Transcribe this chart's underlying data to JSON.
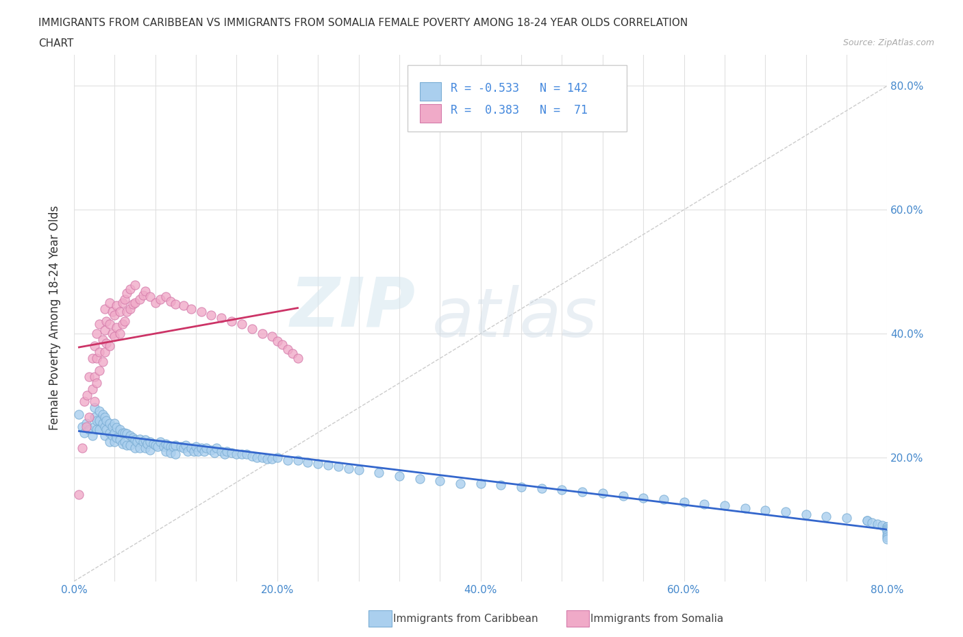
{
  "title_line1": "IMMIGRANTS FROM CARIBBEAN VS IMMIGRANTS FROM SOMALIA FEMALE POVERTY AMONG 18-24 YEAR OLDS CORRELATION",
  "title_line2": "CHART",
  "source_text": "Source: ZipAtlas.com",
  "ylabel": "Female Poverty Among 18-24 Year Olds",
  "xlim": [
    0.0,
    0.8
  ],
  "ylim": [
    0.0,
    0.85
  ],
  "xtick_labels": [
    "0.0%",
    "",
    "",
    "",
    "",
    "20.0%",
    "",
    "",
    "",
    "",
    "40.0%",
    "",
    "",
    "",
    "",
    "60.0%",
    "",
    "",
    "",
    "",
    "80.0%"
  ],
  "xtick_vals": [
    0.0,
    0.04,
    0.08,
    0.12,
    0.16,
    0.2,
    0.24,
    0.28,
    0.32,
    0.36,
    0.4,
    0.44,
    0.48,
    0.52,
    0.56,
    0.6,
    0.64,
    0.68,
    0.72,
    0.76,
    0.8
  ],
  "ytick_labels": [
    "20.0%",
    "40.0%",
    "60.0%",
    "80.0%"
  ],
  "ytick_vals": [
    0.2,
    0.4,
    0.6,
    0.8
  ],
  "grid_color": "#e0e0e0",
  "background_color": "#ffffff",
  "caribbean_color": "#aacfee",
  "caribbean_edge": "#7aadd4",
  "somalia_color": "#f0aac8",
  "somalia_edge": "#d47aaa",
  "caribbean_line_color": "#3366cc",
  "somalia_line_color": "#cc3366",
  "diagonal_line_color": "#cccccc",
  "R_caribbean": -0.533,
  "N_caribbean": 142,
  "R_somalia": 0.383,
  "N_somalia": 71,
  "legend_label_caribbean": "Immigrants from Caribbean",
  "legend_label_somalia": "Immigrants from Somalia",
  "watermark_zip": "ZIP",
  "watermark_atlas": "atlas",
  "caribbean_x": [
    0.005,
    0.008,
    0.01,
    0.012,
    0.015,
    0.018,
    0.02,
    0.02,
    0.02,
    0.022,
    0.022,
    0.025,
    0.025,
    0.025,
    0.028,
    0.028,
    0.03,
    0.03,
    0.03,
    0.032,
    0.032,
    0.035,
    0.035,
    0.035,
    0.038,
    0.038,
    0.04,
    0.04,
    0.04,
    0.042,
    0.042,
    0.045,
    0.045,
    0.048,
    0.048,
    0.05,
    0.05,
    0.052,
    0.052,
    0.055,
    0.055,
    0.058,
    0.06,
    0.06,
    0.062,
    0.065,
    0.065,
    0.068,
    0.07,
    0.07,
    0.072,
    0.075,
    0.075,
    0.078,
    0.08,
    0.082,
    0.085,
    0.088,
    0.09,
    0.09,
    0.092,
    0.095,
    0.095,
    0.098,
    0.1,
    0.1,
    0.105,
    0.108,
    0.11,
    0.112,
    0.115,
    0.118,
    0.12,
    0.122,
    0.125,
    0.128,
    0.13,
    0.135,
    0.138,
    0.14,
    0.145,
    0.148,
    0.15,
    0.155,
    0.16,
    0.165,
    0.17,
    0.175,
    0.18,
    0.185,
    0.19,
    0.195,
    0.2,
    0.21,
    0.22,
    0.23,
    0.24,
    0.25,
    0.26,
    0.27,
    0.28,
    0.3,
    0.32,
    0.34,
    0.36,
    0.38,
    0.4,
    0.42,
    0.44,
    0.46,
    0.48,
    0.5,
    0.52,
    0.54,
    0.56,
    0.58,
    0.6,
    0.62,
    0.64,
    0.66,
    0.68,
    0.7,
    0.72,
    0.74,
    0.76,
    0.78,
    0.78,
    0.785,
    0.79,
    0.795,
    0.8,
    0.8,
    0.8,
    0.8,
    0.8,
    0.8,
    0.8,
    0.8
  ],
  "caribbean_y": [
    0.27,
    0.25,
    0.24,
    0.255,
    0.245,
    0.235,
    0.28,
    0.265,
    0.25,
    0.26,
    0.245,
    0.275,
    0.26,
    0.245,
    0.27,
    0.255,
    0.265,
    0.25,
    0.235,
    0.26,
    0.245,
    0.255,
    0.24,
    0.225,
    0.25,
    0.235,
    0.255,
    0.24,
    0.225,
    0.248,
    0.232,
    0.245,
    0.228,
    0.24,
    0.222,
    0.24,
    0.225,
    0.238,
    0.22,
    0.235,
    0.22,
    0.232,
    0.228,
    0.215,
    0.225,
    0.23,
    0.215,
    0.225,
    0.228,
    0.215,
    0.222,
    0.225,
    0.212,
    0.222,
    0.22,
    0.218,
    0.225,
    0.218,
    0.222,
    0.21,
    0.22,
    0.218,
    0.208,
    0.218,
    0.22,
    0.205,
    0.218,
    0.215,
    0.22,
    0.21,
    0.215,
    0.21,
    0.218,
    0.21,
    0.215,
    0.21,
    0.215,
    0.212,
    0.208,
    0.215,
    0.21,
    0.205,
    0.21,
    0.208,
    0.205,
    0.205,
    0.205,
    0.202,
    0.2,
    0.2,
    0.198,
    0.198,
    0.2,
    0.195,
    0.195,
    0.192,
    0.19,
    0.188,
    0.185,
    0.182,
    0.18,
    0.175,
    0.17,
    0.165,
    0.162,
    0.158,
    0.158,
    0.155,
    0.152,
    0.15,
    0.148,
    0.145,
    0.142,
    0.138,
    0.135,
    0.132,
    0.128,
    0.125,
    0.122,
    0.118,
    0.115,
    0.112,
    0.108,
    0.105,
    0.102,
    0.098,
    0.098,
    0.095,
    0.092,
    0.09,
    0.088,
    0.088,
    0.085,
    0.082,
    0.08,
    0.075,
    0.072,
    0.068
  ],
  "somalia_x": [
    0.005,
    0.008,
    0.01,
    0.012,
    0.013,
    0.015,
    0.015,
    0.018,
    0.018,
    0.02,
    0.02,
    0.02,
    0.022,
    0.022,
    0.022,
    0.025,
    0.025,
    0.025,
    0.028,
    0.028,
    0.03,
    0.03,
    0.03,
    0.032,
    0.032,
    0.035,
    0.035,
    0.035,
    0.038,
    0.038,
    0.04,
    0.04,
    0.042,
    0.042,
    0.045,
    0.045,
    0.048,
    0.048,
    0.05,
    0.05,
    0.052,
    0.052,
    0.055,
    0.055,
    0.058,
    0.06,
    0.06,
    0.065,
    0.068,
    0.07,
    0.075,
    0.08,
    0.085,
    0.09,
    0.095,
    0.1,
    0.108,
    0.115,
    0.125,
    0.135,
    0.145,
    0.155,
    0.165,
    0.175,
    0.185,
    0.195,
    0.2,
    0.205,
    0.21,
    0.215,
    0.22
  ],
  "somalia_y": [
    0.14,
    0.215,
    0.29,
    0.25,
    0.3,
    0.33,
    0.265,
    0.31,
    0.36,
    0.29,
    0.33,
    0.38,
    0.32,
    0.36,
    0.4,
    0.34,
    0.37,
    0.415,
    0.355,
    0.39,
    0.37,
    0.405,
    0.44,
    0.385,
    0.42,
    0.38,
    0.415,
    0.45,
    0.4,
    0.435,
    0.395,
    0.43,
    0.41,
    0.445,
    0.4,
    0.435,
    0.415,
    0.45,
    0.42,
    0.455,
    0.435,
    0.465,
    0.44,
    0.472,
    0.448,
    0.45,
    0.478,
    0.455,
    0.462,
    0.468,
    0.46,
    0.45,
    0.455,
    0.46,
    0.452,
    0.448,
    0.445,
    0.44,
    0.435,
    0.43,
    0.425,
    0.42,
    0.415,
    0.408,
    0.4,
    0.395,
    0.388,
    0.382,
    0.375,
    0.368,
    0.36
  ]
}
